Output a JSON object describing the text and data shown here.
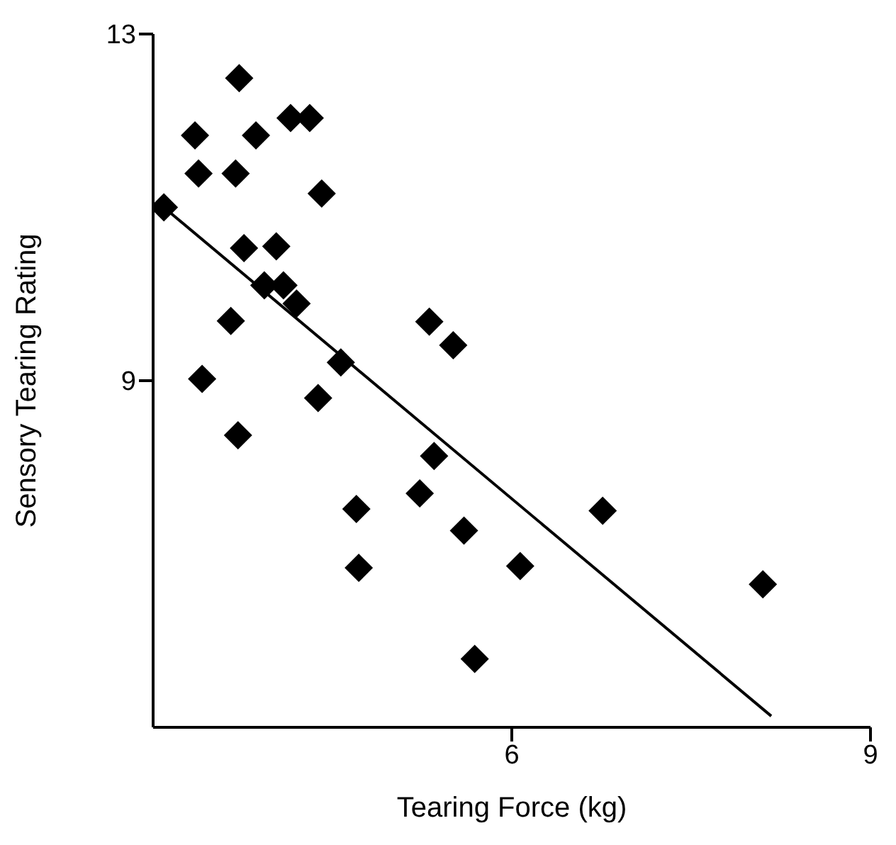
{
  "chart_data": {
    "type": "scatter",
    "xlabel": "Tearing Force (kg)",
    "ylabel": "Sensory Tearing Rating",
    "xlim": [
      3,
      9
    ],
    "xticks": [
      6,
      9
    ],
    "ylim": [
      5,
      13
    ],
    "yticks": [
      9,
      13
    ],
    "grid": false,
    "legend": false,
    "series": [
      {
        "color": "#000000",
        "marker": "diamond",
        "x": [
          3.09,
          3.35,
          3.38,
          3.41,
          3.65,
          3.69,
          3.72,
          3.71,
          3.76,
          3.86,
          3.93,
          4.03,
          4.09,
          4.15,
          4.2,
          4.31,
          4.41,
          4.38,
          4.57,
          4.7,
          4.72,
          5.23,
          5.31,
          5.35,
          5.51,
          5.6,
          5.69,
          6.07,
          6.76,
          8.1
        ],
        "values": [
          11.0,
          11.83,
          11.39,
          9.02,
          9.69,
          11.39,
          12.49,
          8.37,
          10.53,
          11.83,
          10.1,
          10.55,
          10.1,
          12.03,
          9.89,
          12.03,
          11.16,
          8.8,
          9.21,
          7.52,
          6.84,
          7.7,
          9.68,
          8.13,
          9.41,
          7.27,
          5.79,
          6.86,
          7.5,
          6.65
        ]
      },
      {
        "type": "line",
        "color": "#000000",
        "marker": "none",
        "line_style": "solid",
        "x": [
          3.09,
          8.17
        ],
        "values": [
          11.0,
          5.13
        ]
      }
    ]
  }
}
